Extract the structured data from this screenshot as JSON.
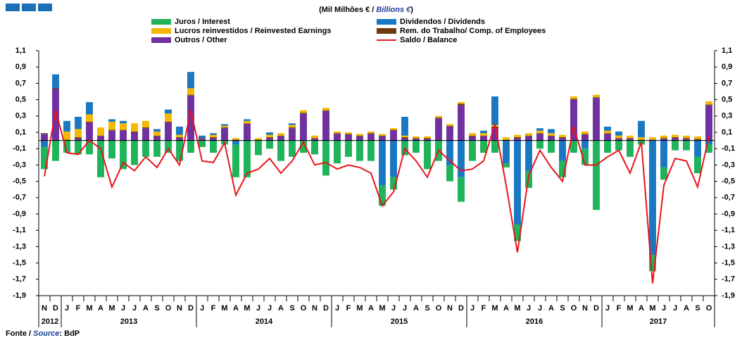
{
  "chart_data": {
    "type": "stacked-bar-line",
    "title": [
      "(Mil Milhões € / ",
      "Billions €",
      ")"
    ],
    "source": [
      "Fonte / ",
      "Source",
      ": BdP"
    ],
    "categories": [
      "N",
      "D",
      "J",
      "F",
      "M",
      "A",
      "M",
      "J",
      "J",
      "A",
      "S",
      "O",
      "N",
      "D",
      "J",
      "F",
      "M",
      "A",
      "M",
      "J",
      "J",
      "A",
      "S",
      "O",
      "N",
      "D",
      "J",
      "F",
      "M",
      "A",
      "M",
      "J",
      "J",
      "A",
      "S",
      "O",
      "N",
      "D",
      "J",
      "F",
      "M",
      "A",
      "M",
      "J",
      "J",
      "A",
      "S",
      "O",
      "N",
      "D",
      "J",
      "F",
      "M",
      "A",
      "M",
      "J",
      "J",
      "A",
      "S",
      "O"
    ],
    "years": [
      "2012",
      "2013",
      "2014",
      "2015",
      "2016",
      "2017"
    ],
    "series": [
      {
        "name": "Juros / Interest",
        "color": "#1fb35a",
        "values": [
          -0.27,
          -0.25,
          -0.15,
          -0.17,
          -0.17,
          -0.45,
          -0.22,
          -0.35,
          -0.3,
          -0.2,
          -0.2,
          -0.15,
          -0.25,
          -0.15,
          -0.08,
          -0.15,
          -0.05,
          -0.4,
          -0.45,
          -0.18,
          -0.1,
          -0.25,
          -0.2,
          -0.15,
          -0.17,
          -0.43,
          -0.28,
          -0.2,
          -0.25,
          -0.25,
          -0.25,
          -0.15,
          -0.18,
          -0.15,
          -0.35,
          -0.25,
          -0.2,
          -0.3,
          -0.25,
          -0.15,
          -0.15,
          -0.05,
          -0.2,
          -0.2,
          -0.1,
          -0.15,
          -0.2,
          -0.15,
          -0.2,
          -0.85,
          -0.15,
          -0.12,
          -0.2,
          -0.05,
          -0.2,
          -0.15,
          -0.12,
          -0.12,
          -0.2,
          -0.1
        ]
      },
      {
        "name": "Dividendos / Dividends",
        "color": "#1a78c2",
        "values": [
          -0.08,
          0.17,
          0.13,
          0.15,
          0.15,
          0,
          0.03,
          0.03,
          0,
          0,
          0.03,
          0.05,
          0.1,
          0.2,
          0.03,
          0.02,
          0.02,
          -0.05,
          0.02,
          0,
          0.03,
          0,
          0.02,
          0,
          0,
          0,
          0,
          0,
          0,
          0,
          -0.55,
          -0.45,
          0.23,
          0,
          0,
          0,
          -0.3,
          -0.45,
          0,
          0.03,
          0.35,
          -0.28,
          -1.03,
          -0.38,
          0.03,
          0.05,
          -0.25,
          0,
          -0.1,
          0,
          0.05,
          0.05,
          0,
          0.2,
          -1.4,
          -0.33,
          0,
          0,
          -0.2,
          -0.05
        ]
      },
      {
        "name": "Lucros reinvestidos / Reinvested Earnings",
        "color": "#f5b800",
        "values": [
          0,
          0,
          0.1,
          0.1,
          0.09,
          0.1,
          0.1,
          0.08,
          0.1,
          0.08,
          0.05,
          0.1,
          0.03,
          0.08,
          0,
          0.03,
          0.02,
          0.02,
          0.03,
          0.02,
          0.03,
          0.03,
          0.03,
          0.03,
          0.03,
          0.03,
          0.02,
          0.02,
          0.02,
          0.02,
          0.02,
          0.02,
          0.02,
          0.02,
          0.02,
          0.02,
          0.02,
          0.02,
          0.03,
          0.03,
          0.02,
          0.03,
          0.03,
          0.03,
          0.03,
          0.03,
          0.03,
          0.03,
          0.03,
          0.03,
          0.03,
          0.03,
          0.03,
          0.03,
          0.03,
          0.03,
          0.03,
          0.03,
          0.03,
          0.04
        ]
      },
      {
        "name": "Rem. do Trabalho/ Comp. of Employees",
        "color": "#6b3a10",
        "values": [
          0.01,
          0.01,
          0.01,
          0.01,
          0.01,
          0.01,
          0.01,
          0.01,
          0.01,
          0.01,
          0.01,
          0.01,
          0.01,
          0.01,
          0.01,
          0.01,
          0.01,
          0.01,
          0.01,
          0.01,
          0.01,
          0.01,
          0.01,
          0.01,
          0.01,
          0.01,
          0.01,
          0.01,
          0.01,
          0.01,
          0.01,
          0.01,
          0.01,
          0.01,
          0.01,
          0.01,
          0.01,
          0.02,
          0.01,
          0.01,
          0.02,
          0.01,
          0.01,
          0.01,
          0.01,
          0.01,
          0.01,
          0.01,
          0.01,
          0.01,
          0.01,
          0.01,
          0.01,
          0.01,
          0.01,
          0.01,
          0.01,
          0.01,
          0.01,
          0.01
        ]
      },
      {
        "name": "Outros / Other",
        "color": "#7030a0",
        "values": [
          0.08,
          0.63,
          0,
          0.03,
          0.22,
          0.05,
          0.12,
          0.12,
          0.1,
          0.15,
          0.05,
          0.22,
          0.03,
          0.55,
          0.02,
          0.03,
          0.15,
          0,
          0.2,
          0,
          0.03,
          0.05,
          0.15,
          0.33,
          0.02,
          0.36,
          0.08,
          0.07,
          0.05,
          0.08,
          0.05,
          0.12,
          0.03,
          0.02,
          0.02,
          0.27,
          0.17,
          0.43,
          0.05,
          0.05,
          0.15,
          0,
          0.03,
          0.05,
          0.08,
          0.05,
          0.03,
          0.5,
          0.07,
          0.52,
          0.08,
          0.02,
          0.02,
          0,
          0,
          0.02,
          0.03,
          0.02,
          0.01,
          0.43
        ]
      }
    ],
    "balance": {
      "name": "Saldo / Balance",
      "color": "#e8141b",
      "values": [
        -0.44,
        0.37,
        -0.15,
        -0.17,
        0,
        -0.1,
        -0.57,
        -0.27,
        -0.37,
        -0.2,
        -0.33,
        -0.1,
        -0.3,
        0.37,
        -0.25,
        -0.27,
        -0.03,
        -0.67,
        -0.4,
        -0.35,
        -0.22,
        -0.4,
        -0.25,
        -0.02,
        -0.3,
        -0.27,
        -0.35,
        -0.3,
        -0.33,
        -0.4,
        -0.8,
        -0.63,
        -0.1,
        -0.25,
        -0.45,
        -0.12,
        -0.25,
        -0.37,
        -0.35,
        -0.25,
        0.2,
        -0.55,
        -1.37,
        -0.43,
        -0.12,
        -0.33,
        -0.5,
        0.17,
        -0.3,
        -0.3,
        -0.2,
        -0.12,
        -0.4,
        -0.02,
        -1.75,
        -0.55,
        -0.22,
        -0.25,
        -0.57,
        0.05
      ]
    },
    "ylim": [
      -1.9,
      1.1
    ],
    "yticks": [
      {
        "value": 1.1,
        "label": "1,1"
      },
      {
        "value": 0.9,
        "label": "0,9"
      },
      {
        "value": 0.7,
        "label": "0,7"
      },
      {
        "value": 0.5,
        "label": "0,5"
      },
      {
        "value": 0.3,
        "label": "0,3"
      },
      {
        "value": 0.1,
        "label": "0,1"
      },
      {
        "value": -0.1,
        "label": "-0,1"
      },
      {
        "value": -0.3,
        "label": "-0,3"
      },
      {
        "value": -0.5,
        "label": "-0,5"
      },
      {
        "value": -0.7,
        "label": "-0,7"
      },
      {
        "value": -0.9,
        "label": "-0,9"
      },
      {
        "value": -1.1,
        "label": "-1,1"
      },
      {
        "value": -1.3,
        "label": "-1,3"
      },
      {
        "value": -1.5,
        "label": "-1,5"
      },
      {
        "value": -1.7,
        "label": "-1,7"
      },
      {
        "value": -1.9,
        "label": "-1,9"
      }
    ],
    "grid": false
  }
}
